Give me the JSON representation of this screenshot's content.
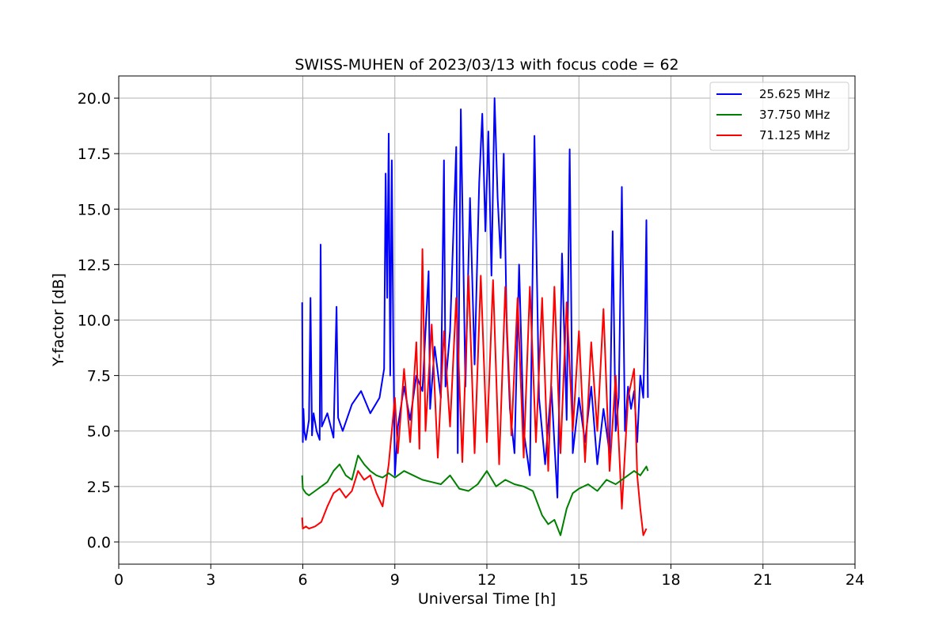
{
  "chart_data": {
    "type": "line",
    "title": "SWISS-MUHEN of 2023/03/13 with focus code = 62",
    "xlabel": "Universal Time [h]",
    "ylabel": "Y-factor [dB]",
    "xlim": [
      0,
      24
    ],
    "ylim": [
      -1.0,
      21.0
    ],
    "xticks": [
      0,
      3,
      6,
      9,
      12,
      15,
      18,
      21,
      24
    ],
    "xtick_labels": [
      "0",
      "3",
      "6",
      "9",
      "12",
      "15",
      "18",
      "21",
      "24"
    ],
    "yticks": [
      0.0,
      2.5,
      5.0,
      7.5,
      10.0,
      12.5,
      15.0,
      17.5,
      20.0
    ],
    "ytick_labels": [
      "0.0",
      "2.5",
      "5.0",
      "7.5",
      "10.0",
      "12.5",
      "15.0",
      "17.5",
      "20.0"
    ],
    "grid": true,
    "legend_position": "top-right",
    "series": [
      {
        "name": "25.625 MHz",
        "color": "#0000ff",
        "x": [
          5.98,
          6.0,
          6.02,
          6.05,
          6.1,
          6.2,
          6.25,
          6.3,
          6.35,
          6.45,
          6.55,
          6.58,
          6.62,
          6.8,
          7.0,
          7.1,
          7.15,
          7.3,
          7.6,
          7.9,
          8.2,
          8.5,
          8.65,
          8.7,
          8.75,
          8.8,
          8.85,
          8.9,
          8.95,
          9.0,
          9.1,
          9.3,
          9.5,
          9.7,
          9.9,
          10.1,
          10.15,
          10.3,
          10.5,
          10.6,
          10.65,
          10.8,
          11.0,
          11.05,
          11.15,
          11.3,
          11.45,
          11.6,
          11.75,
          11.85,
          11.95,
          12.05,
          12.15,
          12.25,
          12.35,
          12.45,
          12.55,
          12.65,
          12.75,
          12.9,
          13.05,
          13.2,
          13.4,
          13.55,
          13.7,
          13.9,
          14.1,
          14.3,
          14.45,
          14.6,
          14.7,
          14.8,
          15.0,
          15.2,
          15.4,
          15.6,
          15.8,
          16.0,
          16.1,
          16.2,
          16.3,
          16.4,
          16.5,
          16.6,
          16.7,
          16.8,
          16.9,
          17.0,
          17.1,
          17.15,
          17.2,
          17.25
        ],
        "y": [
          10.8,
          4.5,
          6.0,
          5.0,
          4.6,
          5.5,
          11.0,
          4.8,
          5.8,
          5.0,
          4.6,
          13.4,
          5.2,
          5.8,
          4.7,
          10.6,
          5.6,
          5.0,
          6.2,
          6.8,
          5.8,
          6.5,
          7.8,
          16.6,
          11.0,
          18.4,
          7.5,
          17.2,
          9.0,
          3.0,
          5.2,
          7.0,
          5.5,
          7.5,
          6.8,
          12.2,
          6.0,
          8.8,
          6.5,
          17.2,
          7.0,
          9.5,
          17.8,
          4.0,
          19.5,
          7.0,
          15.5,
          8.0,
          16.2,
          19.3,
          14.0,
          18.5,
          12.0,
          20.0,
          15.5,
          12.8,
          17.5,
          9.5,
          6.0,
          4.0,
          12.5,
          5.0,
          3.0,
          18.3,
          6.5,
          3.5,
          7.0,
          2.0,
          13.0,
          5.5,
          17.7,
          4.0,
          6.5,
          4.5,
          7.0,
          3.5,
          6.0,
          4.0,
          14.0,
          5.0,
          6.5,
          16.0,
          5.0,
          7.0,
          6.0,
          6.8,
          4.5,
          7.5,
          6.5,
          9.5,
          14.5,
          6.5
        ]
      },
      {
        "name": "37.750 MHz",
        "color": "#008000",
        "x": [
          5.98,
          6.0,
          6.1,
          6.2,
          6.4,
          6.6,
          6.8,
          7.0,
          7.2,
          7.4,
          7.6,
          7.8,
          8.0,
          8.2,
          8.4,
          8.6,
          8.8,
          9.0,
          9.3,
          9.6,
          9.9,
          10.2,
          10.5,
          10.8,
          11.1,
          11.4,
          11.7,
          12.0,
          12.3,
          12.6,
          12.9,
          13.2,
          13.5,
          13.8,
          14.0,
          14.2,
          14.4,
          14.6,
          14.8,
          15.0,
          15.3,
          15.6,
          15.9,
          16.2,
          16.5,
          16.8,
          17.0,
          17.2,
          17.25
        ],
        "y": [
          3.0,
          2.4,
          2.2,
          2.1,
          2.3,
          2.5,
          2.7,
          3.2,
          3.5,
          3.0,
          2.8,
          3.9,
          3.5,
          3.2,
          3.0,
          2.9,
          3.1,
          2.9,
          3.2,
          3.0,
          2.8,
          2.7,
          2.6,
          3.0,
          2.4,
          2.3,
          2.6,
          3.2,
          2.5,
          2.8,
          2.6,
          2.5,
          2.3,
          1.2,
          0.8,
          1.0,
          0.3,
          1.5,
          2.2,
          2.4,
          2.6,
          2.3,
          2.8,
          2.6,
          2.9,
          3.2,
          3.0,
          3.4,
          3.2
        ]
      },
      {
        "name": "71.125 MHz",
        "color": "#ff0000",
        "x": [
          5.98,
          6.0,
          6.1,
          6.2,
          6.4,
          6.6,
          6.8,
          7.0,
          7.2,
          7.4,
          7.6,
          7.8,
          8.0,
          8.2,
          8.4,
          8.6,
          8.8,
          8.9,
          9.0,
          9.1,
          9.3,
          9.5,
          9.7,
          9.8,
          9.9,
          10.0,
          10.2,
          10.4,
          10.6,
          10.8,
          11.0,
          11.2,
          11.4,
          11.6,
          11.8,
          12.0,
          12.2,
          12.4,
          12.6,
          12.8,
          13.0,
          13.2,
          13.4,
          13.6,
          13.8,
          14.0,
          14.2,
          14.4,
          14.6,
          14.8,
          15.0,
          15.2,
          15.4,
          15.6,
          15.8,
          16.0,
          16.2,
          16.4,
          16.6,
          16.8,
          16.9,
          17.0,
          17.1,
          17.2
        ],
        "y": [
          1.1,
          0.6,
          0.7,
          0.6,
          0.7,
          0.9,
          1.6,
          2.2,
          2.4,
          2.0,
          2.3,
          3.2,
          2.8,
          3.0,
          2.2,
          1.6,
          3.5,
          5.0,
          6.5,
          4.0,
          7.8,
          4.5,
          9.0,
          4.2,
          13.2,
          5.0,
          9.8,
          3.8,
          9.5,
          5.2,
          11.0,
          3.6,
          12.0,
          4.0,
          12.0,
          4.5,
          11.8,
          3.5,
          11.5,
          4.8,
          11.0,
          3.8,
          11.5,
          4.5,
          11.0,
          3.2,
          11.5,
          4.0,
          10.8,
          5.0,
          9.5,
          3.6,
          9.0,
          5.0,
          10.5,
          3.2,
          7.5,
          1.5,
          6.5,
          7.8,
          3.0,
          1.5,
          0.3,
          0.6
        ]
      }
    ]
  }
}
